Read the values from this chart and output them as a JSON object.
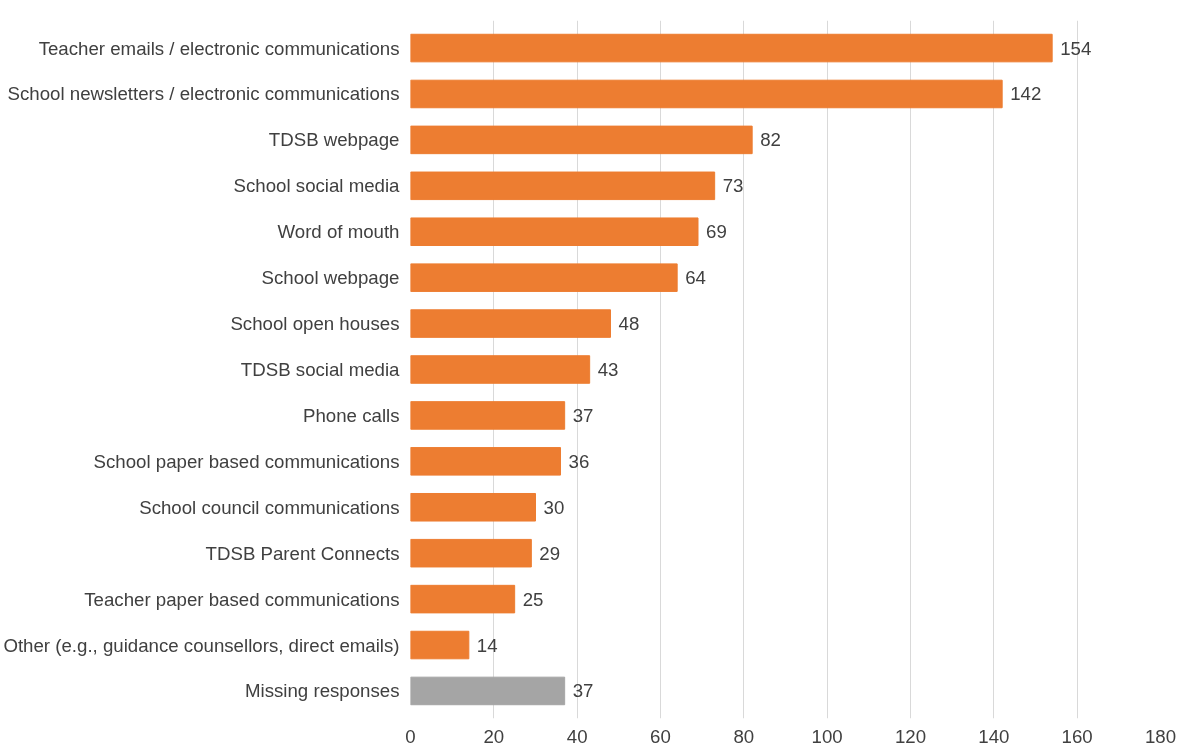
{
  "chart_data": {
    "type": "bar",
    "orientation": "horizontal",
    "categories": [
      "Teacher emails / electronic communications",
      "School newsletters / electronic communications",
      "TDSB webpage",
      "School social media",
      "Word of mouth",
      "School webpage",
      "School open houses",
      "TDSB social media",
      "Phone calls",
      "School paper based communications",
      "School council communications",
      "TDSB Parent Connects",
      "Teacher paper based communications",
      "Other (e.g., guidance counsellors, direct emails)",
      "Missing responses"
    ],
    "values": [
      154,
      142,
      82,
      73,
      69,
      64,
      48,
      43,
      37,
      36,
      30,
      29,
      25,
      14,
      37
    ],
    "colors": [
      "#ed7d31",
      "#ed7d31",
      "#ed7d31",
      "#ed7d31",
      "#ed7d31",
      "#ed7d31",
      "#ed7d31",
      "#ed7d31",
      "#ed7d31",
      "#ed7d31",
      "#ed7d31",
      "#ed7d31",
      "#ed7d31",
      "#ed7d31",
      "#a5a5a5"
    ],
    "xlim": [
      0,
      180
    ],
    "xticks": [
      0,
      20,
      40,
      60,
      80,
      100,
      120,
      140,
      160,
      180
    ],
    "grid": "x",
    "data_labels": true
  }
}
